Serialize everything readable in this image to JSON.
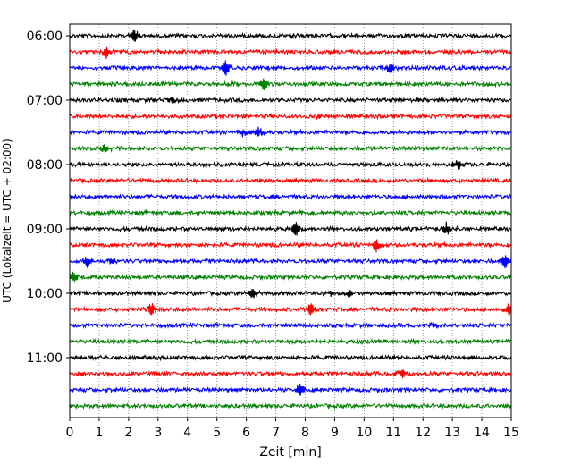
{
  "chart_data": {
    "type": "line",
    "title": "",
    "xlabel": "Zeit  [min]",
    "ylabel": "UTC (Lokalzeit = UTC + 02:00)",
    "xlim": [
      0,
      15
    ],
    "x_ticks": [
      "0",
      "1",
      "2",
      "3",
      "4",
      "5",
      "6",
      "7",
      "8",
      "9",
      "10",
      "11",
      "12",
      "13",
      "14",
      "15"
    ],
    "y_ticks": [
      "06:00",
      "07:00",
      "08:00",
      "09:00",
      "10:00",
      "11:00"
    ],
    "grid": "vertical dotted lines at each minute",
    "colors": [
      "#000000",
      "#ff0000",
      "#0000ff",
      "#008000"
    ],
    "start_time": "06:00",
    "trace_interval_minutes": 15,
    "trace_count": 24,
    "events": [
      {
        "trace": 0,
        "minute": 2.2,
        "amp": 1.0
      },
      {
        "trace": 0,
        "minute": 7.6,
        "amp": 0.35
      },
      {
        "trace": 1,
        "minute": 1.25,
        "amp": 0.9
      },
      {
        "trace": 2,
        "minute": 5.3,
        "amp": 1.1
      },
      {
        "trace": 2,
        "minute": 10.9,
        "amp": 0.8
      },
      {
        "trace": 3,
        "minute": 6.6,
        "amp": 0.9
      },
      {
        "trace": 4,
        "minute": 3.5,
        "amp": 0.3
      },
      {
        "trace": 5,
        "minute": 8.5,
        "amp": 0.35
      },
      {
        "trace": 6,
        "minute": 6.4,
        "amp": 0.9
      },
      {
        "trace": 6,
        "minute": 5.9,
        "amp": 0.6
      },
      {
        "trace": 7,
        "minute": 1.2,
        "amp": 0.8
      },
      {
        "trace": 8,
        "minute": 13.2,
        "amp": 0.9
      },
      {
        "trace": 11,
        "minute": 7.9,
        "amp": 0.4
      },
      {
        "trace": 12,
        "minute": 7.7,
        "amp": 1.1
      },
      {
        "trace": 12,
        "minute": 12.8,
        "amp": 1.0
      },
      {
        "trace": 13,
        "minute": 10.4,
        "amp": 1.0
      },
      {
        "trace": 14,
        "minute": 0.6,
        "amp": 0.8
      },
      {
        "trace": 14,
        "minute": 1.45,
        "amp": 0.5
      },
      {
        "trace": 14,
        "minute": 14.8,
        "amp": 1.0
      },
      {
        "trace": 15,
        "minute": 0.1,
        "amp": 0.8
      },
      {
        "trace": 16,
        "minute": 6.2,
        "amp": 0.9
      },
      {
        "trace": 16,
        "minute": 9.5,
        "amp": 0.7
      },
      {
        "trace": 16,
        "minute": 8.9,
        "amp": 0.4
      },
      {
        "trace": 17,
        "minute": 2.8,
        "amp": 1.0
      },
      {
        "trace": 17,
        "minute": 8.2,
        "amp": 1.0
      },
      {
        "trace": 17,
        "minute": 14.9,
        "amp": 0.9
      },
      {
        "trace": 18,
        "minute": 12.4,
        "amp": 0.4
      },
      {
        "trace": 21,
        "minute": 11.3,
        "amp": 0.6
      },
      {
        "trace": 22,
        "minute": 7.8,
        "amp": 0.9
      }
    ]
  }
}
